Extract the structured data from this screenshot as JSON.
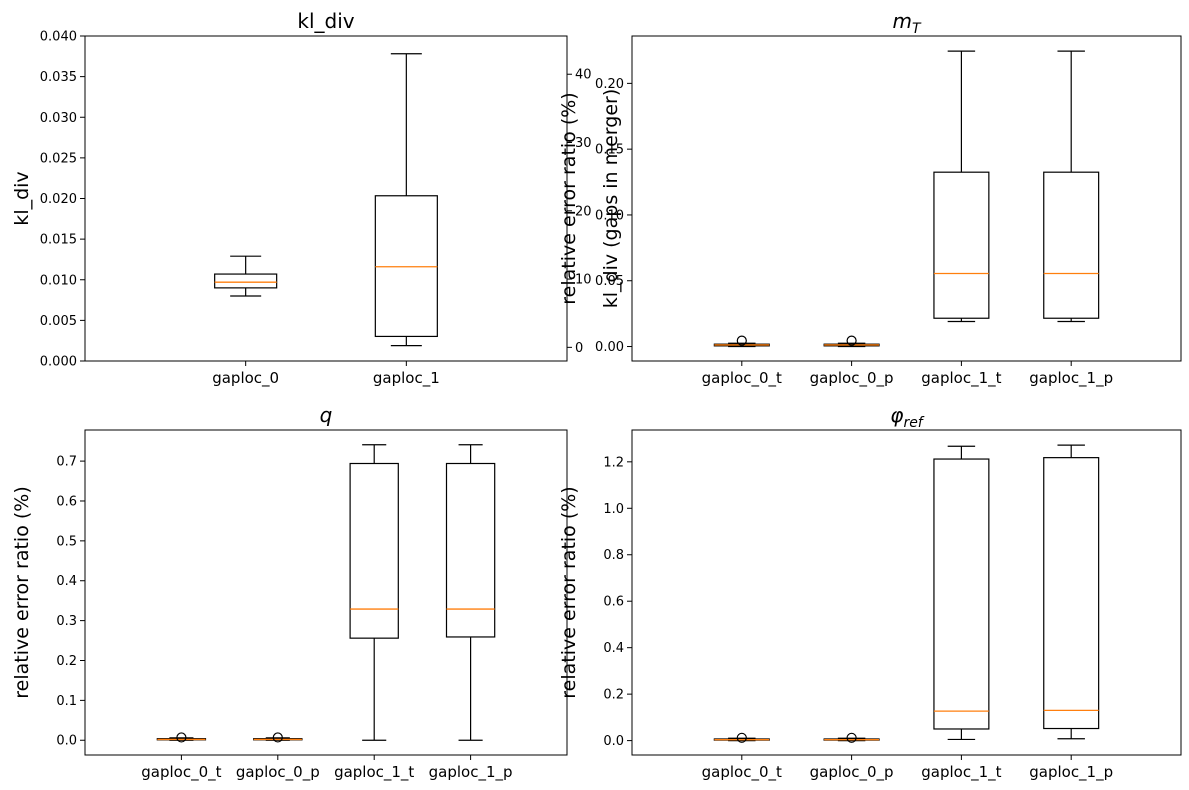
{
  "colors": {
    "box": "#000000",
    "median": "#ff7f0e",
    "background": "#ffffff"
  },
  "chart_data": [
    {
      "type": "box",
      "title": "kl_div",
      "title_main": "kl_div",
      "title_sub": "",
      "title_italic": false,
      "xlabel": "",
      "ylabel": "kl_div",
      "ylim": [
        0,
        0.04
      ],
      "yticks": [
        "0.000",
        "0.005",
        "0.010",
        "0.015",
        "0.020",
        "0.025",
        "0.030",
        "0.035",
        "0.040"
      ],
      "ytick_values": [
        0,
        0.005,
        0.01,
        0.015,
        0.02,
        0.025,
        0.03,
        0.035,
        0.04
      ],
      "categories": [
        "gaploc_0",
        "gaploc_1"
      ],
      "boxes": [
        {
          "category": "gaploc_0",
          "axis": "left",
          "whisker_low": 0.008,
          "q1": 0.009,
          "median": 0.0097,
          "q3": 0.0107,
          "whisker_high": 0.0129,
          "outliers": []
        },
        {
          "category": "gaploc_1",
          "axis": "right",
          "whisker_low": 0.25,
          "q1": 1.6,
          "median": 11.8,
          "q3": 22.2,
          "whisker_high": 43.0,
          "outliers": []
        }
      ],
      "right_axis": {
        "ylabel": "kl_div (gaps in merger)",
        "ylim": [
          -2.0,
          45.6
        ],
        "yticks": [
          "0",
          "10",
          "20",
          "30",
          "40"
        ],
        "ytick_values": [
          0,
          10,
          20,
          30,
          40
        ]
      }
    },
    {
      "type": "box",
      "title": "m_T",
      "title_main": "m",
      "title_sub": "T",
      "title_italic": true,
      "xlabel": "",
      "ylabel": "relative error ratio (%)",
      "ylim": [
        -0.011,
        0.236
      ],
      "yticks": [
        "0.00",
        "0.05",
        "0.10",
        "0.15",
        "0.20"
      ],
      "ytick_values": [
        0,
        0.05,
        0.1,
        0.15,
        0.2
      ],
      "categories": [
        "gaploc_0_t",
        "gaploc_0_p",
        "gaploc_1_t",
        "gaploc_1_p"
      ],
      "boxes": [
        {
          "category": "gaploc_0_t",
          "whisker_low": 0.0,
          "q1": 0.0005,
          "median": 0.0012,
          "q3": 0.0018,
          "whisker_high": 0.0025,
          "outliers": [
            0.0045
          ]
        },
        {
          "category": "gaploc_0_p",
          "whisker_low": 0.0,
          "q1": 0.0005,
          "median": 0.0012,
          "q3": 0.0018,
          "whisker_high": 0.0025,
          "outliers": [
            0.0045
          ]
        },
        {
          "category": "gaploc_1_t",
          "whisker_low": 0.019,
          "q1": 0.0215,
          "median": 0.0555,
          "q3": 0.1325,
          "whisker_high": 0.2245,
          "outliers": []
        },
        {
          "category": "gaploc_1_p",
          "whisker_low": 0.019,
          "q1": 0.0215,
          "median": 0.0555,
          "q3": 0.1325,
          "whisker_high": 0.2245,
          "outliers": []
        }
      ]
    },
    {
      "type": "box",
      "title": "q",
      "title_main": "q",
      "title_sub": "",
      "title_italic": true,
      "xlabel": "",
      "ylabel": "relative error ratio (%)",
      "ylim": [
        -0.037,
        0.778
      ],
      "yticks": [
        "0.0",
        "0.1",
        "0.2",
        "0.3",
        "0.4",
        "0.5",
        "0.6",
        "0.7"
      ],
      "ytick_values": [
        0,
        0.1,
        0.2,
        0.3,
        0.4,
        0.5,
        0.6,
        0.7
      ],
      "categories": [
        "gaploc_0_t",
        "gaploc_0_p",
        "gaploc_1_t",
        "gaploc_1_p"
      ],
      "boxes": [
        {
          "category": "gaploc_0_t",
          "whisker_low": 0.0,
          "q1": 0.001,
          "median": 0.002,
          "q3": 0.004,
          "whisker_high": 0.006,
          "outliers": [
            0.007
          ]
        },
        {
          "category": "gaploc_0_p",
          "whisker_low": 0.0,
          "q1": 0.001,
          "median": 0.002,
          "q3": 0.004,
          "whisker_high": 0.006,
          "outliers": [
            0.007
          ]
        },
        {
          "category": "gaploc_1_t",
          "whisker_low": 0.0,
          "q1": 0.256,
          "median": 0.329,
          "q3": 0.694,
          "whisker_high": 0.741,
          "outliers": []
        },
        {
          "category": "gaploc_1_p",
          "whisker_low": 0.0,
          "q1": 0.259,
          "median": 0.329,
          "q3": 0.694,
          "whisker_high": 0.741,
          "outliers": []
        }
      ]
    },
    {
      "type": "box",
      "title": "φ_ref",
      "title_main": "φ",
      "title_sub": "ref",
      "title_italic": true,
      "xlabel": "",
      "ylabel": "relative error ratio (%)",
      "ylim": [
        -0.062,
        1.337
      ],
      "yticks": [
        "0.0",
        "0.2",
        "0.4",
        "0.6",
        "0.8",
        "1.0",
        "1.2"
      ],
      "ytick_values": [
        0,
        0.2,
        0.4,
        0.6,
        0.8,
        1.0,
        1.2
      ],
      "categories": [
        "gaploc_0_t",
        "gaploc_0_p",
        "gaploc_1_t",
        "gaploc_1_p"
      ],
      "boxes": [
        {
          "category": "gaploc_0_t",
          "whisker_low": 0.0,
          "q1": 0.002,
          "median": 0.004,
          "q3": 0.007,
          "whisker_high": 0.01,
          "outliers": [
            0.012
          ]
        },
        {
          "category": "gaploc_0_p",
          "whisker_low": 0.0,
          "q1": 0.002,
          "median": 0.004,
          "q3": 0.007,
          "whisker_high": 0.01,
          "outliers": [
            0.012
          ]
        },
        {
          "category": "gaploc_1_t",
          "whisker_low": 0.005,
          "q1": 0.05,
          "median": 0.127,
          "q3": 1.212,
          "whisker_high": 1.267,
          "outliers": []
        },
        {
          "category": "gaploc_1_p",
          "whisker_low": 0.008,
          "q1": 0.052,
          "median": 0.13,
          "q3": 1.218,
          "whisker_high": 1.272,
          "outliers": []
        }
      ]
    }
  ]
}
